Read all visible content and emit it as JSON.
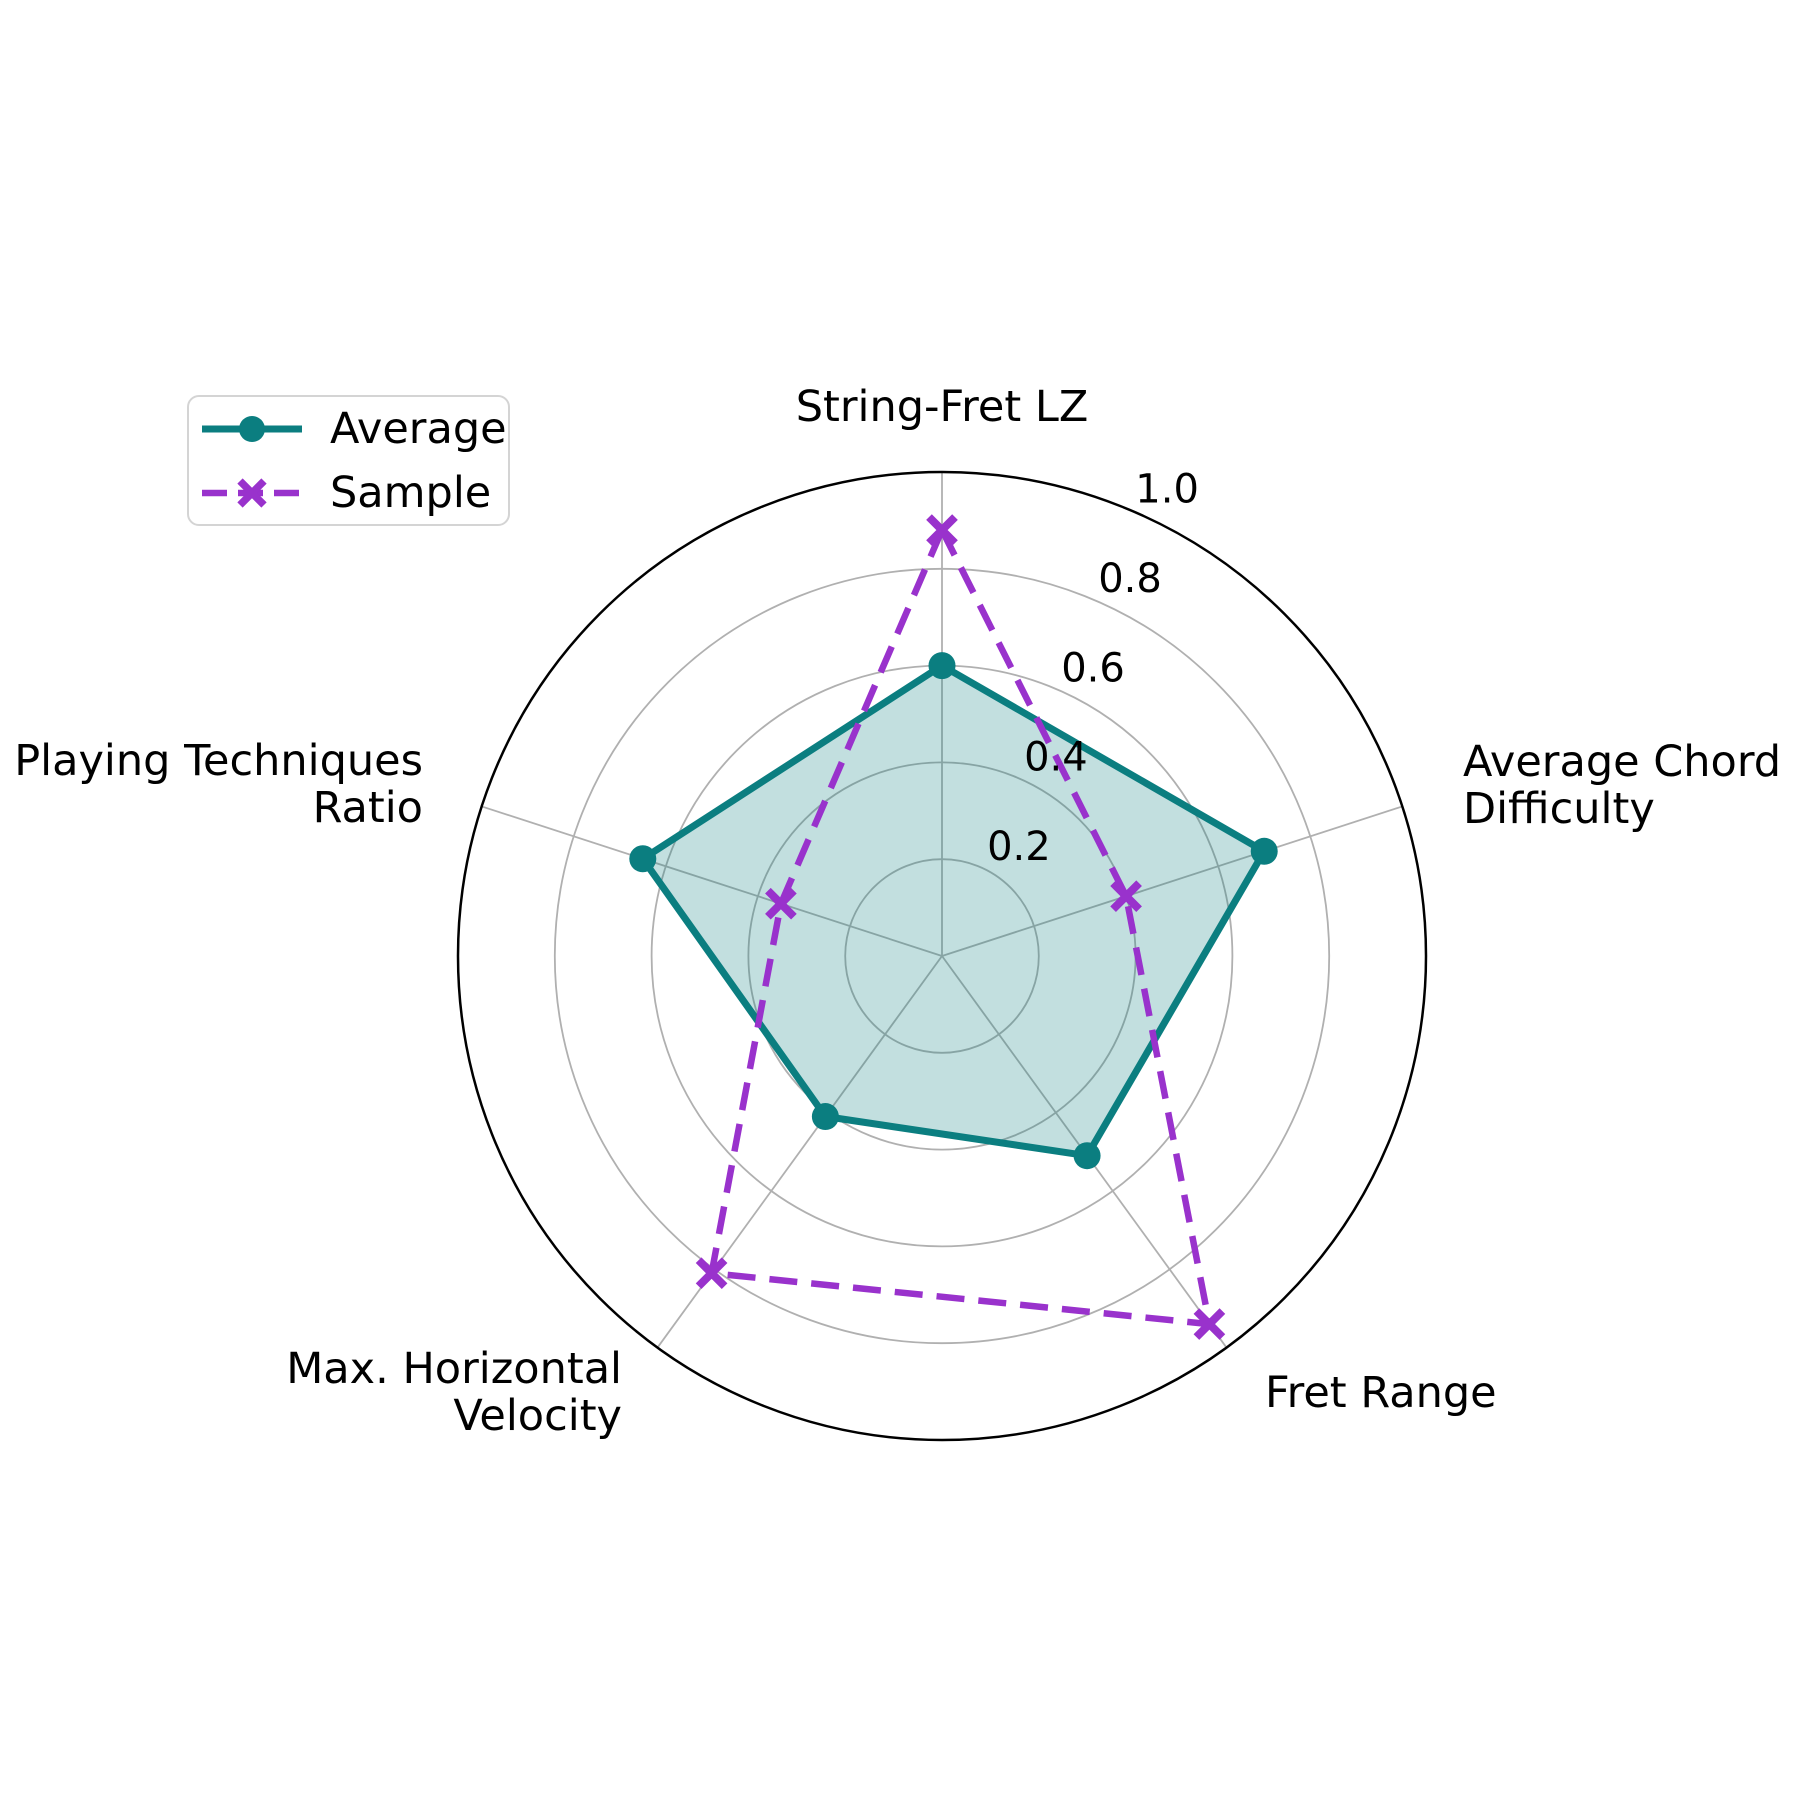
{
  "chart_data": {
    "type": "radar",
    "categories": [
      "String-Fret LZ",
      "Average Chord\nDifficulty",
      "Fret Range",
      "Max. Horizontal\nVelocity",
      "Playing Techniques\nRatio"
    ],
    "series": [
      {
        "name": "Average",
        "values": [
          0.6,
          0.7,
          0.51,
          0.41,
          0.65
        ],
        "color": "#0b7e80",
        "style": "solid",
        "marker": "circle",
        "fill": true,
        "fill_opacity": 0.25
      },
      {
        "name": "Sample",
        "values": [
          0.88,
          0.4,
          0.94,
          0.81,
          0.35
        ],
        "color": "#9932cc",
        "style": "dashed",
        "marker": "x",
        "fill": false
      }
    ],
    "radial_ticks": [
      "0.2",
      "0.4",
      "0.6",
      "0.8",
      "1.0"
    ],
    "radial_tick_values": [
      0.2,
      0.4,
      0.6,
      0.8,
      1.0
    ],
    "rlim": [
      0,
      1.0
    ],
    "grid": true,
    "grid_color": "#b0b0b0",
    "outline_color": "#000000",
    "tick_label_color": "#000000",
    "legend_position": "upper left"
  }
}
